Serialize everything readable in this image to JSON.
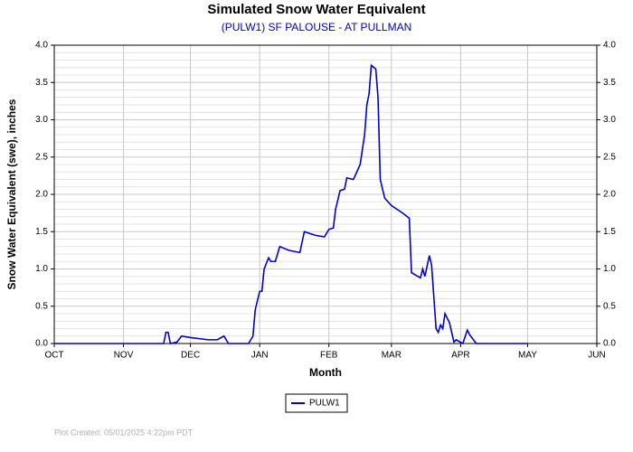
{
  "chart_data": {
    "type": "line",
    "title": "Simulated Snow Water Equivalent",
    "subtitle": "(PULW1) SF PALOUSE - AT PULLMAN",
    "x_label": "Month",
    "y_label": "Snow Water Equivalent (swe),  inches",
    "footer": "Plot Created: 05/01/2025 4:22pm PDT",
    "x": [
      0,
      49,
      50,
      51,
      52,
      55,
      57,
      61,
      69,
      73,
      76,
      78,
      87,
      89,
      90,
      92,
      93,
      94,
      96,
      97,
      99,
      101,
      105,
      110,
      112,
      117,
      121,
      123,
      125,
      126,
      128,
      130,
      131,
      134,
      137,
      139,
      140,
      141,
      142,
      144,
      145,
      146,
      148,
      151,
      156,
      159,
      160,
      164,
      165,
      166,
      168,
      169,
      171,
      172,
      173,
      174,
      175,
      177,
      179,
      180,
      183,
      185,
      186,
      189,
      212
    ],
    "series": [
      {
        "name": "PULW1",
        "color": "#0000cc",
        "values": [
          0,
          0,
          0.15,
          0.15,
          0,
          0.02,
          0.1,
          0.08,
          0.05,
          0.05,
          0.1,
          0,
          0,
          0.1,
          0.45,
          0.7,
          0.7,
          1.0,
          1.15,
          1.1,
          1.1,
          1.3,
          1.25,
          1.22,
          1.5,
          1.45,
          1.43,
          1.53,
          1.55,
          1.8,
          2.05,
          2.07,
          2.22,
          2.2,
          2.4,
          2.8,
          3.2,
          3.35,
          3.73,
          3.68,
          3.3,
          2.2,
          1.95,
          1.85,
          1.75,
          1.68,
          0.95,
          0.88,
          1.0,
          0.9,
          1.18,
          1.05,
          0.2,
          0.15,
          0.25,
          0.2,
          0.4,
          0.28,
          0.02,
          0.05,
          0,
          0.18,
          0.12,
          0,
          0
        ]
      }
    ],
    "xlim": [
      0,
      243
    ],
    "xticks": [
      {
        "value": 0,
        "label": "OCT"
      },
      {
        "value": 31,
        "label": "NOV"
      },
      {
        "value": 61,
        "label": "DEC"
      },
      {
        "value": 92,
        "label": "JAN"
      },
      {
        "value": 123,
        "label": "FEB"
      },
      {
        "value": 151,
        "label": "MAR"
      },
      {
        "value": 182,
        "label": "APR"
      },
      {
        "value": 212,
        "label": "MAY"
      },
      {
        "value": 243,
        "label": "JUN"
      }
    ],
    "ylim": [
      0,
      4
    ],
    "yticks": [
      {
        "value": 0,
        "label": "0.0"
      },
      {
        "value": 0.5,
        "label": "0.5"
      },
      {
        "value": 1,
        "label": "1.0"
      },
      {
        "value": 1.5,
        "label": "1.5"
      },
      {
        "value": 2,
        "label": "2.0"
      },
      {
        "value": 2.5,
        "label": "2.5"
      },
      {
        "value": 3,
        "label": "3.0"
      },
      {
        "value": 3.5,
        "label": "3.5"
      },
      {
        "value": 4,
        "label": "4.0"
      }
    ],
    "grid": true,
    "minor_grid": true,
    "legend": "bottom"
  }
}
